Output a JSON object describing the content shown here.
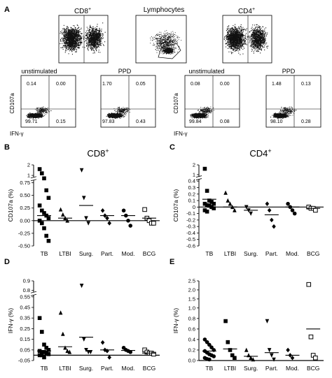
{
  "panel_letters": [
    "A",
    "B",
    "C",
    "D",
    "E"
  ],
  "top_flow": {
    "labels": [
      "CD8+",
      "Lymphocytes",
      "CD4+"
    ]
  },
  "bottom_flow": [
    {
      "title": "unstimulated",
      "values": [
        "0.14",
        "0.00",
        "99.71",
        "0.15"
      ]
    },
    {
      "title": "PPD",
      "values": [
        "1.70",
        "0.05",
        "97.83",
        "0.43"
      ]
    },
    {
      "title": "unstimulated",
      "values": [
        "0.08",
        "0.00",
        "99.84",
        "0.08"
      ]
    },
    {
      "title": "PPD",
      "values": [
        "1.48",
        "0.13",
        "98.10",
        "0.28"
      ]
    }
  ],
  "flow_axis": {
    "y": "CD107a",
    "x": "IFN-γ"
  },
  "chart_data": [
    {
      "type": "scatter",
      "panel": "B",
      "title": "CD8+",
      "ylabel": "CD107a (%)",
      "categories": [
        "TB",
        "LTBI",
        "Surg.",
        "Part.",
        "Mod.",
        "BCG"
      ],
      "y_ticks": [
        "-0.50",
        "-0.25",
        "0.00",
        "0.25",
        "0.50",
        "0.75",
        "1",
        "2"
      ],
      "series": [
        {
          "category": "TB",
          "marker": "square",
          "values": [
            1.6,
            1.2,
            0.9,
            0.6,
            0.45,
            0.3,
            0.2,
            0.15,
            0.1,
            0.05,
            0.0,
            -0.05,
            -0.15,
            -0.3,
            -0.4
          ],
          "mean": 0.1
        },
        {
          "category": "LTBI",
          "marker": "triangle",
          "values": [
            0.22,
            0.12,
            0.05,
            0.0
          ],
          "mean": 0.05
        },
        {
          "category": "Surg.",
          "marker": "tri-down",
          "values": [
            1.5,
            0.45,
            0.05,
            -0.05
          ],
          "mean": 0.3
        },
        {
          "category": "Part.",
          "marker": "diamond",
          "values": [
            0.2,
            0.1,
            0.05,
            -0.05
          ],
          "mean": 0.1
        },
        {
          "category": "Mod.",
          "marker": "circle",
          "values": [
            0.2,
            0.1,
            0.0,
            -0.1
          ],
          "mean": 0.1
        },
        {
          "category": "BCG",
          "marker": "open-square",
          "values": [
            0.22,
            0.05,
            0.0,
            -0.05,
            -0.05
          ],
          "mean": 0.05
        }
      ]
    },
    {
      "type": "scatter",
      "panel": "C",
      "title": "CD4+",
      "ylabel": "CD107a (%)",
      "categories": [
        "TB",
        "LTBI",
        "Surg.",
        "Part.",
        "Mod.",
        "BCG"
      ],
      "y_ticks": [
        "-0.6",
        "-0.5",
        "-0.4",
        "-0.3",
        "-0.2",
        "-0.1",
        "0",
        "0.1",
        "0.2",
        "0.3",
        "0.4",
        "1",
        "2"
      ],
      "series": [
        {
          "category": "TB",
          "marker": "square",
          "values": [
            1.6,
            0.25,
            0.1,
            0.08,
            0.05,
            0.05,
            0.03,
            0.02,
            0.0,
            -0.02,
            -0.05,
            -0.07
          ],
          "mean": 0.12
        },
        {
          "category": "LTBI",
          "marker": "triangle",
          "values": [
            0.22,
            0.1,
            0.05,
            0.0,
            -0.05
          ],
          "mean": 0.0
        },
        {
          "category": "Surg.",
          "marker": "tri-down",
          "values": [
            0.0,
            -0.05,
            -0.1
          ],
          "mean": -0.05
        },
        {
          "category": "Part.",
          "marker": "diamond",
          "values": [
            0.05,
            -0.05,
            -0.2,
            -0.3
          ],
          "mean": -0.12
        },
        {
          "category": "Mod.",
          "marker": "circle",
          "values": [
            0.05,
            0.0,
            -0.05,
            -0.1
          ],
          "mean": 0.0
        },
        {
          "category": "BCG",
          "marker": "open-square",
          "values": [
            0.0,
            -0.02,
            -0.02,
            -0.05
          ],
          "mean": -0.02
        }
      ]
    },
    {
      "type": "scatter",
      "panel": "D",
      "ylabel": "IFN-γ (%)",
      "categories": [
        "TB",
        "LTBI",
        "Surg.",
        "Part.",
        "Mod.",
        "BCG"
      ],
      "y_ticks": [
        "-0.05",
        "0.05",
        "0.15",
        "0.25",
        "0.35",
        "0.45",
        "0.55",
        "0.8",
        "0.9"
      ],
      "series": [
        {
          "category": "TB",
          "marker": "square",
          "values": [
            0.35,
            0.22,
            0.1,
            0.07,
            0.05,
            0.04,
            0.03,
            0.03,
            0.02,
            0.01,
            0.0,
            0.0,
            -0.02
          ],
          "mean": 0.04
        },
        {
          "category": "LTBI",
          "marker": "triangle",
          "values": [
            0.4,
            0.2,
            0.07,
            0.04,
            0.03
          ],
          "mean": 0.08
        },
        {
          "category": "Surg.",
          "marker": "tri-down",
          "values": [
            0.85,
            0.15,
            0.05,
            0.03,
            0.03
          ],
          "mean": 0.17
        },
        {
          "category": "Part.",
          "marker": "diamond",
          "values": [
            0.12,
            0.05,
            0.04,
            -0.02
          ],
          "mean": 0.05
        },
        {
          "category": "Mod.",
          "marker": "circle",
          "values": [
            0.07,
            0.05,
            0.04,
            0.03
          ],
          "mean": 0.045
        },
        {
          "category": "BCG",
          "marker": "open-square",
          "values": [
            0.05,
            0.03,
            0.02,
            0.02,
            0.01
          ],
          "mean": 0.02
        }
      ]
    },
    {
      "type": "scatter",
      "panel": "E",
      "ylabel": "IFN-γ (%)",
      "categories": [
        "TB",
        "LTBI",
        "Surg.",
        "Part.",
        "Mod.",
        "BCG"
      ],
      "y_ticks": [
        "0.0",
        "0.2",
        "0.4",
        "0.6",
        "0.8",
        "1.0",
        "1.5",
        "2.0",
        "2.5"
      ],
      "series": [
        {
          "category": "TB",
          "marker": "circle",
          "values": [
            0.4,
            0.35,
            0.3,
            0.25,
            0.2,
            0.18,
            0.15,
            0.12,
            0.1,
            0.08,
            0.05,
            0.03,
            0.02
          ],
          "mean": 0.18
        },
        {
          "category": "LTBI",
          "marker": "square",
          "values": [
            0.75,
            0.35,
            0.2,
            0.1,
            0.05
          ],
          "mean": 0.22
        },
        {
          "category": "Surg.",
          "marker": "triangle",
          "values": [
            0.2,
            0.1,
            0.05,
            0.02
          ],
          "mean": 0.08
        },
        {
          "category": "Part.",
          "marker": "tri-down",
          "values": [
            0.75,
            0.2,
            0.1,
            0.02
          ],
          "mean": 0.15
        },
        {
          "category": "Mod.",
          "marker": "diamond",
          "values": [
            0.2,
            0.1,
            0.05
          ],
          "mean": 0.1
        },
        {
          "category": "BCG",
          "marker": "open-square",
          "values": [
            2.3,
            0.45,
            0.1,
            0.05
          ],
          "mean": 0.6
        }
      ]
    }
  ]
}
